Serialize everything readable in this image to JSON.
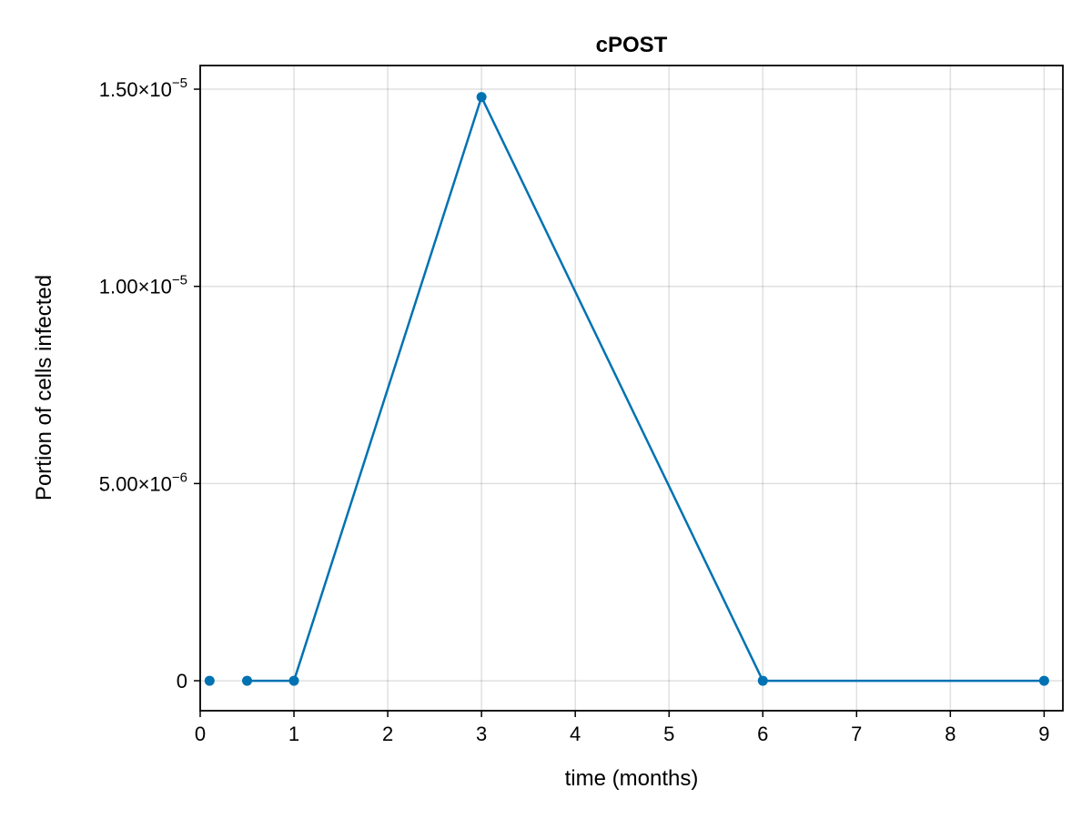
{
  "chart_data": {
    "type": "line",
    "title": "cPOST",
    "xlabel": "time (months)",
    "ylabel": "Portion of cells infected",
    "xlim": [
      0,
      9.2
    ],
    "ylim": [
      -7.6e-07,
      1.56e-05
    ],
    "x_ticks": [
      {
        "value": 0,
        "label": "0"
      },
      {
        "value": 1,
        "label": "1"
      },
      {
        "value": 2,
        "label": "2"
      },
      {
        "value": 3,
        "label": "3"
      },
      {
        "value": 4,
        "label": "4"
      },
      {
        "value": 5,
        "label": "5"
      },
      {
        "value": 6,
        "label": "6"
      },
      {
        "value": 7,
        "label": "7"
      },
      {
        "value": 8,
        "label": "8"
      },
      {
        "value": 9,
        "label": "9"
      }
    ],
    "y_ticks": [
      {
        "value": 0,
        "mantissa": "0",
        "exponent": ""
      },
      {
        "value": 5e-06,
        "mantissa": "5.00×10",
        "exponent": "−6"
      },
      {
        "value": 1e-05,
        "mantissa": "1.00×10",
        "exponent": "−5"
      },
      {
        "value": 1.5e-05,
        "mantissa": "1.50×10",
        "exponent": "−5"
      }
    ],
    "grid": true,
    "legend": "none",
    "series": [
      {
        "color": "#0072b2",
        "segments": [
          {
            "x": [
              0.1
            ],
            "y": [
              0
            ]
          },
          {
            "x": [
              0.5,
              1,
              3,
              6,
              9
            ],
            "y": [
              0,
              0,
              1.48e-05,
              0,
              0
            ]
          }
        ]
      }
    ]
  }
}
